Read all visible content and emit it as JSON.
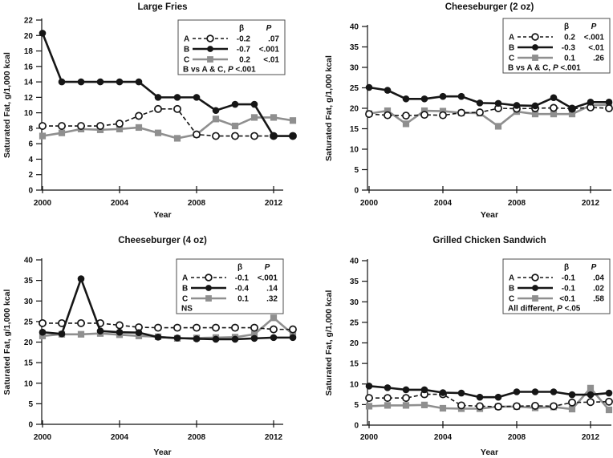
{
  "figure": {
    "ylabel": "Saturated Fat, g/1,000 kcal",
    "xlabel": "Year",
    "colors": {
      "black_series": "#161616",
      "gray_series": "#8f8f8f",
      "axis": "#111111",
      "legend_border": "#4d4d4d",
      "background": "#ffffff"
    }
  },
  "chart_data": [
    {
      "type": "line",
      "title": "Large Fries",
      "xlabel": "Year",
      "ylabel": "Saturated Fat, g/1,000 kcal",
      "ylim": [
        0,
        22
      ],
      "ytick_step": 2,
      "xticks": [
        2000,
        2004,
        2008,
        2012
      ],
      "grid": false,
      "legend_position": "top-right",
      "x": [
        2000,
        2001,
        2002,
        2003,
        2004,
        2005,
        2006,
        2007,
        2008,
        2009,
        2010,
        2011,
        2012,
        2013
      ],
      "series": [
        {
          "name": "A",
          "line": "dashed",
          "marker": "open-circle",
          "color": "#161616",
          "beta": "-0.2",
          "p": ".07",
          "values": [
            8.3,
            8.3,
            8.3,
            8.3,
            8.6,
            9.6,
            10.5,
            10.5,
            7.2,
            7.0,
            7.0,
            7.0,
            7.0,
            7.0
          ]
        },
        {
          "name": "B",
          "line": "solid",
          "marker": "filled-circle",
          "color": "#161616",
          "beta": "-0.7",
          "p": "<.001",
          "values": [
            20.3,
            14.0,
            14.0,
            14.0,
            14.0,
            14.0,
            12.0,
            12.0,
            12.0,
            10.3,
            11.1,
            11.1,
            7.0,
            7.0
          ]
        },
        {
          "name": "C",
          "line": "solid",
          "marker": "filled-square",
          "color": "#8f8f8f",
          "beta": "0.2",
          "p": "<.01",
          "values": [
            7.0,
            7.4,
            7.9,
            7.8,
            7.9,
            8.1,
            7.4,
            6.7,
            7.2,
            9.2,
            8.3,
            9.4,
            9.4,
            9.0
          ]
        }
      ],
      "legend": {
        "beta_header": "β",
        "p_header": "P",
        "note": "B vs A & C, P <.001"
      }
    },
    {
      "type": "line",
      "title": "Cheeseburger (2 oz)",
      "xlabel": "Year",
      "ylabel": "Saturated Fat, g/1,000 kcal",
      "ylim": [
        0,
        40
      ],
      "ytick_step": 5,
      "xticks": [
        2000,
        2004,
        2008,
        2012
      ],
      "grid": false,
      "legend_position": "top-right",
      "x": [
        2000,
        2001,
        2002,
        2003,
        2004,
        2005,
        2006,
        2007,
        2008,
        2009,
        2010,
        2011,
        2012,
        2013
      ],
      "series": [
        {
          "name": "A",
          "line": "dashed",
          "marker": "open-circle",
          "color": "#161616",
          "beta": "0.2",
          "p": "<.001",
          "values": [
            18.6,
            18.3,
            18.2,
            18.4,
            18.3,
            18.9,
            19.0,
            20.0,
            19.9,
            20.0,
            20.1,
            19.9,
            20.2,
            20.0
          ]
        },
        {
          "name": "B",
          "line": "solid",
          "marker": "filled-circle",
          "color": "#161616",
          "beta": "-0.3",
          "p": "<.01",
          "values": [
            25.1,
            24.4,
            22.3,
            22.3,
            22.9,
            22.9,
            21.3,
            21.2,
            20.7,
            20.6,
            22.6,
            20.0,
            21.5,
            21.5
          ]
        },
        {
          "name": "C",
          "line": "solid",
          "marker": "filled-square",
          "color": "#8f8f8f",
          "beta": "0.1",
          "p": ".26",
          "values": [
            18.7,
            19.4,
            16.2,
            19.4,
            19.3,
            18.9,
            18.8,
            15.6,
            19.2,
            18.6,
            18.6,
            18.6,
            20.7,
            20.9
          ]
        }
      ],
      "legend": {
        "beta_header": "β",
        "p_header": "P",
        "note": "B vs A & C, P <.001"
      }
    },
    {
      "type": "line",
      "title": "Cheeseburger (4 oz)",
      "xlabel": "Year",
      "ylabel": "Saturated Fat, g/1,000 kcal",
      "ylim": [
        0,
        40
      ],
      "ytick_step": 5,
      "xticks": [
        2000,
        2004,
        2008,
        2012
      ],
      "grid": false,
      "legend_position": "top-right",
      "x": [
        2000,
        2001,
        2002,
        2003,
        2004,
        2005,
        2006,
        2007,
        2008,
        2009,
        2010,
        2011,
        2012,
        2013
      ],
      "series": [
        {
          "name": "A",
          "line": "dashed",
          "marker": "open-circle",
          "color": "#161616",
          "beta": "-0.1",
          "p": "<.001",
          "values": [
            24.6,
            24.6,
            24.6,
            24.6,
            24.1,
            23.6,
            23.5,
            23.5,
            23.5,
            23.5,
            23.5,
            23.5,
            23.1,
            23.1
          ]
        },
        {
          "name": "B",
          "line": "solid",
          "marker": "filled-circle",
          "color": "#161616",
          "beta": "-0.4",
          "p": ".14",
          "values": [
            22.4,
            22.0,
            35.4,
            22.7,
            22.4,
            22.3,
            21.2,
            21.0,
            20.8,
            20.7,
            20.7,
            20.9,
            21.1,
            21.1
          ]
        },
        {
          "name": "C",
          "line": "solid",
          "marker": "filled-square",
          "color": "#8f8f8f",
          "beta": "0.1",
          "p": ".32",
          "values": [
            21.5,
            21.9,
            21.9,
            22.1,
            21.8,
            21.5,
            21.3,
            20.9,
            21.0,
            21.1,
            21.2,
            21.9,
            25.9,
            21.9
          ]
        }
      ],
      "legend": {
        "beta_header": "β",
        "p_header": "P",
        "note": "NS"
      }
    },
    {
      "type": "line",
      "title": "Grilled Chicken Sandwich",
      "xlabel": "Year",
      "ylabel": "Saturated Fat, g/1,000 kcal",
      "ylim": [
        0,
        40
      ],
      "ytick_step": 5,
      "xticks": [
        2000,
        2004,
        2008,
        2012
      ],
      "grid": false,
      "legend_position": "top-right",
      "x": [
        2000,
        2001,
        2002,
        2003,
        2004,
        2005,
        2006,
        2007,
        2008,
        2009,
        2010,
        2011,
        2012,
        2013
      ],
      "series": [
        {
          "name": "A",
          "line": "dashed",
          "marker": "open-circle",
          "color": "#161616",
          "beta": "-0.1",
          "p": ".04",
          "values": [
            6.6,
            6.6,
            6.6,
            7.5,
            7.5,
            4.8,
            4.6,
            4.5,
            4.6,
            4.7,
            4.6,
            5.5,
            5.6,
            5.7
          ]
        },
        {
          "name": "B",
          "line": "solid",
          "marker": "filled-circle",
          "color": "#161616",
          "beta": "-0.1",
          "p": ".02",
          "values": [
            9.5,
            9.1,
            8.6,
            8.6,
            7.9,
            7.8,
            6.8,
            6.8,
            8.1,
            8.1,
            8.1,
            7.4,
            7.4,
            7.8
          ]
        },
        {
          "name": "C",
          "line": "solid",
          "marker": "filled-square",
          "color": "#8f8f8f",
          "beta": "<0.1",
          "p": ".58",
          "values": [
            4.6,
            4.8,
            4.8,
            4.9,
            4.1,
            4.0,
            4.0,
            4.5,
            4.5,
            4.2,
            4.4,
            3.9,
            9.0,
            3.7
          ]
        }
      ],
      "legend": {
        "beta_header": "β",
        "p_header": "P",
        "note": "All different, P <.05"
      }
    }
  ]
}
